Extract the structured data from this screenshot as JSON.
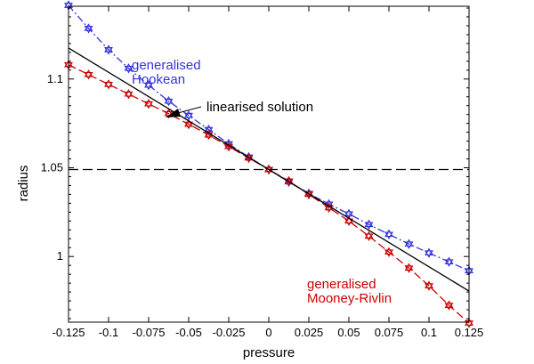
{
  "chart_data": {
    "type": "line",
    "xlabel": "pressure",
    "ylabel": "radius",
    "xlim": [
      -0.125,
      0.125
    ],
    "ylim": [
      0.963,
      1.141
    ],
    "x_ticks": [
      -0.125,
      -0.1,
      -0.075,
      -0.05,
      -0.025,
      0,
      0.025,
      0.05,
      0.075,
      0.1,
      0.125
    ],
    "x_tick_labels": [
      "-0.125",
      "-0.1",
      "-0.075",
      "-0.05",
      "-0.025",
      "0",
      "0.025",
      "0.05",
      "0.075",
      "0.1",
      "0.125"
    ],
    "y_ticks": [
      1,
      1.05,
      1.1
    ],
    "y_tick_labels": [
      "1",
      "1.05",
      "1.1"
    ],
    "grid": false,
    "series": [
      {
        "name": "generalised Hookean",
        "color": "#3333dd",
        "line_style": "dash-dot",
        "marker": "star-of-david",
        "x": [
          -0.125,
          -0.1125,
          -0.1,
          -0.0875,
          -0.075,
          -0.0625,
          -0.05,
          -0.0375,
          -0.025,
          -0.0125,
          0,
          0.0125,
          0.025,
          0.0375,
          0.05,
          0.0625,
          0.075,
          0.0875,
          0.1,
          0.1125,
          0.125
        ],
        "y": [
          1.1415,
          1.1285,
          1.1165,
          1.106,
          1.0965,
          1.0875,
          1.0795,
          1.0715,
          1.0635,
          1.056,
          1.049,
          1.042,
          1.0355,
          1.0295,
          1.024,
          1.018,
          1.0125,
          1.007,
          1.002,
          0.997,
          0.992
        ]
      },
      {
        "name": "generalised Mooney-Rivlin",
        "color": "#cc0000",
        "line_style": "long-dash",
        "marker": "star-of-david",
        "x": [
          -0.125,
          -0.1125,
          -0.1,
          -0.0875,
          -0.075,
          -0.0625,
          -0.05,
          -0.0375,
          -0.025,
          -0.0125,
          0,
          0.0125,
          0.025,
          0.0375,
          0.05,
          0.0625,
          0.075,
          0.0875,
          0.1,
          0.1125,
          0.125
        ],
        "y": [
          1.108,
          1.1025,
          1.097,
          1.0915,
          1.086,
          1.0805,
          1.0745,
          1.0685,
          1.062,
          1.0555,
          1.049,
          1.0425,
          1.035,
          1.0275,
          1.02,
          1.0115,
          1.0025,
          0.9935,
          0.9835,
          0.9725,
          0.9625
        ]
      },
      {
        "name": "linearised solution",
        "color": "#000000",
        "line_style": "solid",
        "marker": "none",
        "x": [
          -0.125,
          0.125
        ],
        "y": [
          1.1175,
          0.9805
        ]
      },
      {
        "name": "",
        "color": "#000000",
        "line_style": "dashed",
        "marker": "none",
        "x": [
          -0.125,
          0.125
        ],
        "y": [
          1.049,
          1.049
        ]
      }
    ],
    "annotations": {
      "hookean_label": [
        "generalised",
        "Hookean"
      ],
      "linearised_label": "linearised solution",
      "mooney_label": [
        "generalised",
        "Mooney-Rivlin"
      ]
    }
  }
}
